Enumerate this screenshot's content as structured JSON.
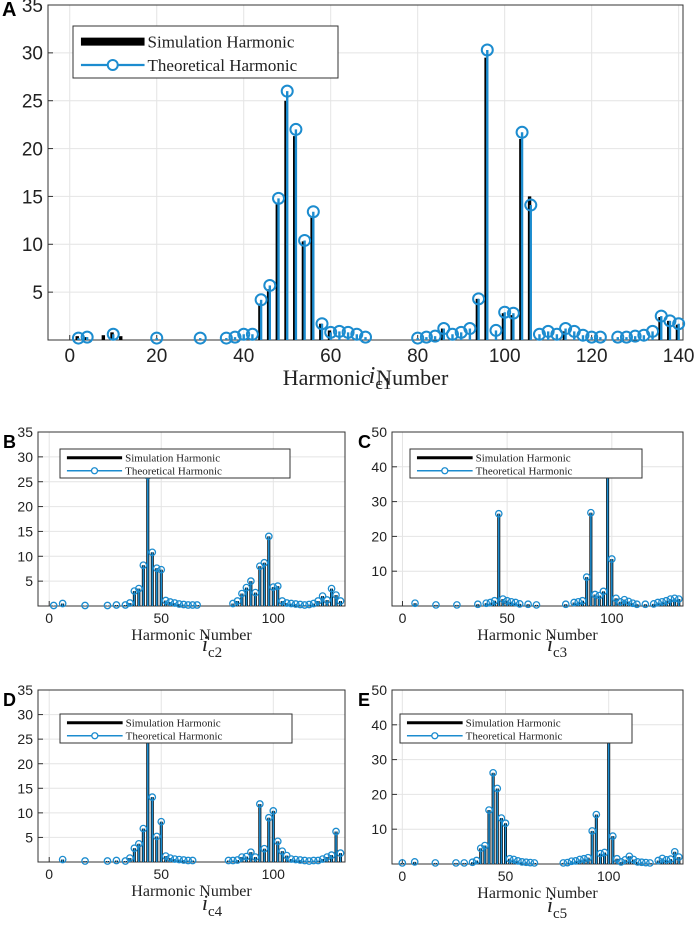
{
  "chart_data": [
    {
      "panel_label": "A",
      "type": "stem",
      "caption_main": "i",
      "caption_sub": "c1",
      "xlabel": "Harmonic Number",
      "ylabel": "",
      "xlim": [
        -5,
        141
      ],
      "ylim": [
        0,
        35
      ],
      "xticks": [
        0,
        20,
        40,
        60,
        80,
        100,
        120,
        140
      ],
      "yticks": [
        5,
        10,
        15,
        20,
        25,
        30,
        35
      ],
      "legend": [
        "Simulation Harmonic",
        "Theoretical Harmonic"
      ],
      "simulation": {
        "h": [
          2,
          4,
          8,
          10,
          12,
          44,
          46,
          48,
          50,
          52,
          54,
          56,
          58,
          60,
          86,
          94,
          96,
          100,
          102,
          104,
          106,
          114,
          136,
          138,
          140
        ],
        "v": [
          0.4,
          0.3,
          0.5,
          0.8,
          0.4,
          3.8,
          5.3,
          14.2,
          25.0,
          21.3,
          10.3,
          12.8,
          1.7,
          1.0,
          1.2,
          4.3,
          29.5,
          2.8,
          2.6,
          21.0,
          15.0,
          0.9,
          2.4,
          2.0,
          1.6
        ]
      },
      "theoretical": {
        "h": [
          2,
          4,
          10,
          20,
          30,
          36,
          38,
          40,
          42,
          44,
          46,
          48,
          50,
          52,
          54,
          56,
          58,
          60,
          62,
          64,
          66,
          68,
          80,
          82,
          84,
          86,
          88,
          90,
          92,
          94,
          96,
          98,
          100,
          102,
          104,
          106,
          108,
          110,
          112,
          114,
          116,
          118,
          120,
          122,
          126,
          128,
          130,
          132,
          134,
          136,
          138,
          140
        ],
        "v": [
          0.2,
          0.3,
          0.6,
          0.2,
          0.2,
          0.2,
          0.3,
          0.6,
          0.6,
          4.2,
          5.7,
          14.8,
          26.0,
          22.0,
          10.4,
          13.4,
          1.7,
          0.8,
          0.9,
          0.8,
          0.6,
          0.3,
          0.2,
          0.3,
          0.4,
          1.2,
          0.6,
          0.8,
          1.2,
          4.3,
          30.3,
          1.0,
          2.9,
          2.8,
          21.7,
          14.1,
          0.6,
          0.9,
          0.6,
          1.2,
          0.9,
          0.5,
          0.3,
          0.3,
          0.3,
          0.3,
          0.4,
          0.5,
          0.9,
          2.5,
          2.0,
          1.7
        ]
      }
    },
    {
      "panel_label": "B",
      "type": "stem",
      "caption_main": "i",
      "caption_sub": "c2",
      "xlabel": "Harmonic Number",
      "xlim": [
        -5,
        132
      ],
      "ylim": [
        0,
        35
      ],
      "xticks": [
        0,
        50,
        100
      ],
      "yticks": [
        5,
        10,
        15,
        20,
        25,
        30,
        35
      ],
      "legend": [
        "Simulation Harmonic",
        "Theoretical Harmonic"
      ],
      "theoretical": {
        "h": [
          2,
          6,
          16,
          26,
          30,
          34,
          36,
          38,
          40,
          42,
          44,
          46,
          48,
          50,
          52,
          54,
          56,
          58,
          60,
          62,
          64,
          66,
          82,
          84,
          86,
          88,
          90,
          92,
          94,
          96,
          98,
          100,
          102,
          104,
          106,
          108,
          110,
          112,
          114,
          116,
          118,
          120,
          122,
          124,
          126,
          128,
          130
        ],
        "v": [
          0.1,
          0.5,
          0.1,
          0.1,
          0.2,
          0.2,
          0.6,
          3.0,
          3.5,
          8.2,
          26.2,
          10.8,
          7.6,
          7.3,
          1.1,
          0.8,
          0.6,
          0.4,
          0.3,
          0.2,
          0.2,
          0.2,
          0.5,
          1.0,
          2.5,
          3.7,
          5.0,
          2.7,
          8.0,
          8.7,
          14.0,
          3.8,
          4.0,
          1.0,
          0.6,
          0.5,
          0.4,
          0.3,
          0.2,
          0.3,
          0.5,
          1.0,
          2.0,
          1.2,
          3.5,
          2.2,
          1.0
        ]
      }
    },
    {
      "panel_label": "C",
      "type": "stem",
      "caption_main": "i",
      "caption_sub": "c3",
      "xlabel": "Harmonic Number",
      "xlim": [
        -5,
        134
      ],
      "ylim": [
        0,
        50
      ],
      "xticks": [
        0,
        50,
        100
      ],
      "yticks": [
        10,
        20,
        30,
        40,
        50
      ],
      "legend": [
        "Simulation Harmonic",
        "Theoretical Harmonic"
      ],
      "theoretical": {
        "h": [
          6,
          16,
          26,
          36,
          40,
          42,
          44,
          46,
          48,
          50,
          52,
          54,
          56,
          60,
          64,
          78,
          82,
          84,
          86,
          88,
          90,
          92,
          94,
          96,
          98,
          100,
          102,
          104,
          106,
          108,
          110,
          112,
          116,
          120,
          122,
          124,
          126,
          128,
          130,
          132
        ],
        "v": [
          0.8,
          0.3,
          0.3,
          0.5,
          0.8,
          1.0,
          1.5,
          26.5,
          2.0,
          1.5,
          1.2,
          1.0,
          0.6,
          0.5,
          0.3,
          0.5,
          1.0,
          1.2,
          1.5,
          8.3,
          26.8,
          3.3,
          3.0,
          4.2,
          39.2,
          13.5,
          2.2,
          1.2,
          1.8,
          1.3,
          0.8,
          0.5,
          0.5,
          0.6,
          1.0,
          1.2,
          1.5,
          2.0,
          2.2,
          2.0
        ]
      }
    },
    {
      "panel_label": "D",
      "type": "stem",
      "caption_main": "i",
      "caption_sub": "c4",
      "xlabel": "Harmonic Number",
      "xlim": [
        -5,
        132
      ],
      "ylim": [
        0,
        35
      ],
      "xticks": [
        0,
        50,
        100
      ],
      "yticks": [
        5,
        10,
        15,
        20,
        25,
        30,
        35
      ],
      "legend": [
        "Simulation Harmonic",
        "Theoretical Harmonic"
      ],
      "theoretical": {
        "h": [
          6,
          16,
          26,
          30,
          34,
          36,
          38,
          40,
          42,
          44,
          46,
          48,
          50,
          52,
          54,
          56,
          58,
          60,
          62,
          64,
          80,
          82,
          84,
          86,
          88,
          90,
          92,
          94,
          96,
          98,
          100,
          102,
          104,
          106,
          108,
          110,
          112,
          114,
          116,
          118,
          120,
          122,
          124,
          126,
          128,
          130
        ],
        "v": [
          0.5,
          0.2,
          0.2,
          0.3,
          0.2,
          0.8,
          2.8,
          3.7,
          6.8,
          26.0,
          13.2,
          5.2,
          8.2,
          1.2,
          0.8,
          0.6,
          0.5,
          0.4,
          0.3,
          0.3,
          0.3,
          0.3,
          0.4,
          1.0,
          1.1,
          2.0,
          1.0,
          11.8,
          2.7,
          9.0,
          10.4,
          4.2,
          2.2,
          1.3,
          0.6,
          0.5,
          0.4,
          0.3,
          0.2,
          0.3,
          0.3,
          0.6,
          1.0,
          1.4,
          6.2,
          1.8
        ]
      }
    },
    {
      "panel_label": "E",
      "type": "stem",
      "caption_main": "i",
      "caption_sub": "c5",
      "xlabel": "Harmonic Number",
      "xlim": [
        -5,
        136
      ],
      "ylim": [
        0,
        50
      ],
      "xticks": [
        0,
        50,
        100
      ],
      "yticks": [
        10,
        20,
        30,
        40,
        50
      ],
      "legend": [
        "Simulation Harmonic",
        "Theoretical Harmonic"
      ],
      "theoretical": {
        "h": [
          0,
          6,
          16,
          26,
          30,
          34,
          36,
          38,
          40,
          42,
          44,
          46,
          48,
          50,
          52,
          54,
          56,
          58,
          60,
          62,
          64,
          78,
          80,
          82,
          84,
          86,
          88,
          90,
          92,
          94,
          96,
          98,
          100,
          102,
          104,
          106,
          108,
          110,
          112,
          114,
          116,
          118,
          120,
          124,
          126,
          128,
          130,
          132,
          134
        ],
        "v": [
          0.3,
          0.6,
          0.3,
          0.3,
          0.3,
          0.5,
          1.0,
          4.5,
          5.3,
          15.5,
          26.2,
          21.7,
          13.2,
          11.7,
          1.5,
          1.3,
          0.9,
          0.6,
          0.5,
          0.4,
          0.3,
          0.3,
          0.4,
          0.8,
          0.9,
          1.3,
          1.5,
          1.8,
          9.5,
          14.2,
          3.0,
          3.3,
          42.0,
          8.0,
          1.5,
          0.6,
          1.2,
          2.2,
          1.3,
          0.6,
          0.5,
          0.4,
          0.3,
          1.0,
          1.6,
          1.2,
          1.4,
          3.5,
          2.0
        ]
      }
    }
  ]
}
